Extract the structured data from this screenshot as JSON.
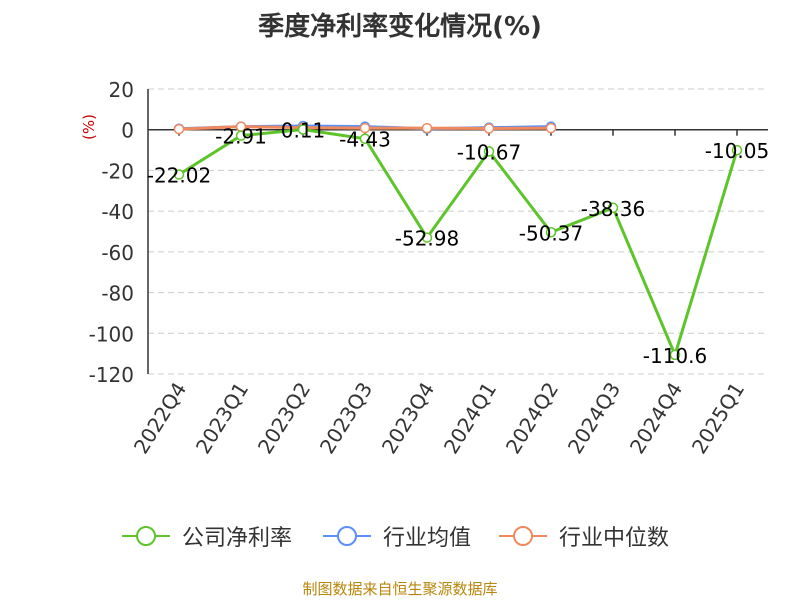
{
  "chart_data": {
    "type": "line",
    "title": "季度净利率变化情况(%)",
    "ylabel": "(%)",
    "categories": [
      "2022Q4",
      "2023Q1",
      "2023Q2",
      "2023Q3",
      "2023Q4",
      "2024Q1",
      "2024Q2",
      "2024Q3",
      "2024Q4",
      "2025Q1"
    ],
    "ylim": [
      -120,
      20
    ],
    "yticks": [
      20,
      0,
      -20,
      -40,
      -60,
      -80,
      -100,
      -120
    ],
    "grid": true,
    "legend_position": "bottom",
    "series": [
      {
        "name": "公司净利率",
        "color": "#5dc42a",
        "values": [
          -22.02,
          -2.91,
          0.11,
          -4.43,
          -52.98,
          -10.67,
          -50.37,
          -38.36,
          -110.6,
          -10.05
        ],
        "labels": [
          "-22.02",
          "-2.91",
          "0.11",
          "-4.43",
          "-52.98",
          "-10.67",
          "-50.37",
          "-38.36",
          "-110.6",
          "-10.05"
        ]
      },
      {
        "name": "行业均值",
        "color": "#5b8ff9",
        "values": [
          0.5,
          1.5,
          1.8,
          1.5,
          0.5,
          1.0,
          1.5,
          null,
          null,
          null
        ]
      },
      {
        "name": "行业中位数",
        "color": "#f08a5d",
        "values": [
          0.3,
          1.5,
          1.0,
          0.8,
          0.8,
          0.6,
          0.8,
          null,
          null,
          null
        ]
      }
    ]
  },
  "source": "制图数据来自恒生聚源数据库"
}
